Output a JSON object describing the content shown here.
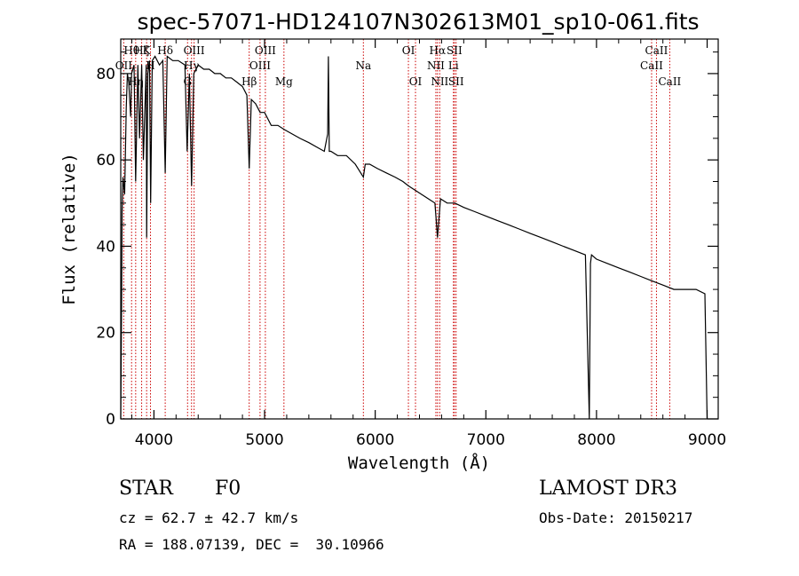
{
  "chart_data": {
    "type": "line",
    "title": "spec-57071-HD124107N302613M01_sp10-061.fits",
    "xlabel": "Wavelength (Å)",
    "ylabel": "Flux (relative)",
    "xlim": [
      3700,
      9100
    ],
    "ylim": [
      0,
      88
    ],
    "xticks": [
      4000,
      5000,
      6000,
      7000,
      8000,
      9000
    ],
    "yticks": [
      0,
      20,
      40,
      60,
      80
    ],
    "series": [
      {
        "name": "spectrum",
        "x": [
          3700,
          3708,
          3712,
          3720,
          3735,
          3750,
          3760,
          3772,
          3790,
          3798,
          3820,
          3835,
          3855,
          3870,
          3889,
          3905,
          3930,
          3934,
          3945,
          3960,
          3970,
          3985,
          4010,
          4050,
          4080,
          4102,
          4120,
          4170,
          4220,
          4280,
          4300,
          4320,
          4340,
          4360,
          4400,
          4450,
          4500,
          4550,
          4600,
          4650,
          4700,
          4750,
          4800,
          4840,
          4861,
          4880,
          4920,
          4960,
          5000,
          5060,
          5120,
          5180,
          5250,
          5320,
          5400,
          5470,
          5540,
          5570,
          5577,
          5585,
          5600,
          5660,
          5740,
          5820,
          5893,
          5910,
          5950,
          6020,
          6100,
          6180,
          6250,
          6300,
          6360,
          6420,
          6480,
          6540,
          6563,
          6590,
          6650,
          6720,
          6800,
          6900,
          7000,
          7100,
          7200,
          7300,
          7400,
          7500,
          7600,
          7700,
          7800,
          7900,
          7935,
          7945,
          7955,
          8000,
          8100,
          8200,
          8300,
          8400,
          8500,
          8600,
          8700,
          8800,
          8900,
          8980,
          9000
        ],
        "y": [
          0,
          28,
          48,
          56,
          52,
          72,
          80,
          78,
          70,
          80,
          82,
          55,
          82,
          65,
          82,
          60,
          82,
          42,
          80,
          83,
          50,
          83,
          84,
          82,
          83,
          57,
          84,
          83,
          83,
          82,
          62,
          80,
          54,
          80,
          82,
          81,
          81,
          80,
          80,
          79,
          79,
          78,
          77,
          75,
          58,
          74,
          73,
          71,
          71,
          68,
          68,
          67,
          66,
          65,
          64,
          63,
          62,
          66,
          84,
          62,
          62,
          61,
          61,
          59,
          56,
          59,
          59,
          58,
          57,
          56,
          55,
          54,
          53,
          52,
          51,
          50,
          42,
          51,
          50,
          50,
          49,
          48,
          47,
          46,
          45,
          44,
          43,
          42,
          41,
          40,
          39,
          38,
          0,
          36,
          38,
          37,
          36,
          35,
          34,
          33,
          32,
          31,
          30,
          30,
          30,
          29,
          0
        ]
      }
    ],
    "line_marks": [
      {
        "x": 3727,
        "label": "OII",
        "row": 2
      },
      {
        "x": 3798,
        "label": "Hθ",
        "row": 1
      },
      {
        "x": 3835,
        "label": "Hη",
        "row": 3
      },
      {
        "x": 3889,
        "label": "Hζ",
        "row": 1
      },
      {
        "x": 3934,
        "label": "K",
        "row": 1
      },
      {
        "x": 3969,
        "label": "H",
        "row": 2
      },
      {
        "x": 4102,
        "label": "Hδ",
        "row": 1
      },
      {
        "x": 4304,
        "label": "G",
        "row": 3
      },
      {
        "x": 4340,
        "label": "Hγ",
        "row": 2
      },
      {
        "x": 4363,
        "label": "OIII",
        "row": 1
      },
      {
        "x": 4861,
        "label": "Hβ",
        "row": 3
      },
      {
        "x": 4959,
        "label": "OIII",
        "row": 2
      },
      {
        "x": 5007,
        "label": "OIII",
        "row": 1
      },
      {
        "x": 5175,
        "label": "Mg",
        "row": 3
      },
      {
        "x": 5893,
        "label": "Na",
        "row": 2
      },
      {
        "x": 6300,
        "label": "OI",
        "row": 1
      },
      {
        "x": 6364,
        "label": "OI",
        "row": 3
      },
      {
        "x": 6548,
        "label": "NII",
        "row": 2
      },
      {
        "x": 6563,
        "label": "Hα",
        "row": 1
      },
      {
        "x": 6583,
        "label": "NII",
        "row": 3
      },
      {
        "x": 6707,
        "label": "Li",
        "row": 2
      },
      {
        "x": 6716,
        "label": "SII",
        "row": 1
      },
      {
        "x": 6731,
        "label": "SII",
        "row": 3
      },
      {
        "x": 8498,
        "label": "CaII",
        "row": 2
      },
      {
        "x": 8542,
        "label": "CaII",
        "row": 1
      },
      {
        "x": 8662,
        "label": "CaII",
        "row": 3
      }
    ]
  },
  "info": {
    "object_class": "STAR",
    "subclass": "F0",
    "survey": "LAMOST DR3",
    "redshift": "cz = 62.7 ± 42.7 km/s",
    "obs_date": "Obs-Date: 20150217",
    "coords": "RA = 188.07139, DEC =  30.10966"
  },
  "colors": {
    "axis": "#000000",
    "spectrum": "#000000",
    "line_marker": "#cc0000"
  }
}
